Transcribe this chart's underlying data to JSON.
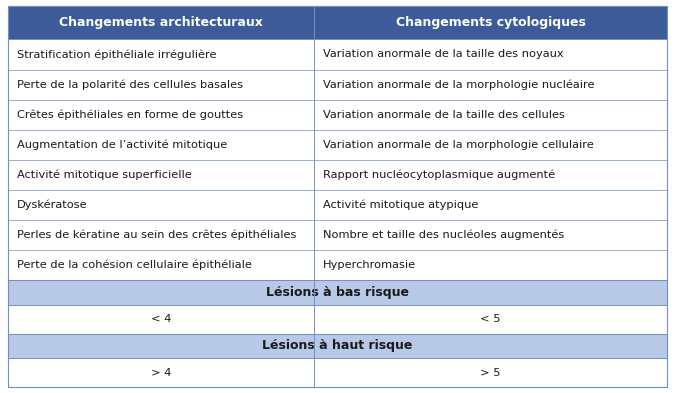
{
  "header_bg": "#3d5a99",
  "header_text_color": "#ffffff",
  "section_bg": "#b8c9e8",
  "section_text_color": "#1a1a1a",
  "row_bg": "#ffffff",
  "border_color": "#7090c0",
  "col1_header": "Changements architecturaux",
  "col2_header": "Changements cytologiques",
  "rows": [
    [
      "Stratification épithéliale irrégulière",
      "Variation anormale de la taille des noyaux"
    ],
    [
      "Perte de la polarité des cellules basales",
      "Variation anormale de la morphologie nucléaire"
    ],
    [
      "Crêtes épithéliales en forme de gouttes",
      "Variation anormale de la taille des cellules"
    ],
    [
      "Augmentation de l’activité mitotique",
      "Variation anormale de la morphologie cellulaire"
    ],
    [
      "Activité mitotique superficielle",
      "Rapport nucléocytoplasmique augmenté"
    ],
    [
      "Dyskératose",
      "Activité mitotique atypique"
    ],
    [
      "Perles de kératine au sein des crêtes épithéliales",
      "Nombre et taille des nucléoles augmentés"
    ],
    [
      "Perte de la cohésion cellulaire épithéliale",
      "Hyperchromasie"
    ]
  ],
  "section1_label": "Lésions à bas risque",
  "section1_values": [
    "< 4",
    "< 5"
  ],
  "section2_label": "Lésions à haut risque",
  "section2_values": [
    "> 4",
    "> 5"
  ],
  "col_split": 0.465,
  "header_fontsize": 9.0,
  "row_fontsize": 8.2,
  "section_fontsize": 9.0,
  "value_fontsize": 8.2,
  "fig_width": 6.75,
  "fig_height": 3.93,
  "dpi": 100
}
